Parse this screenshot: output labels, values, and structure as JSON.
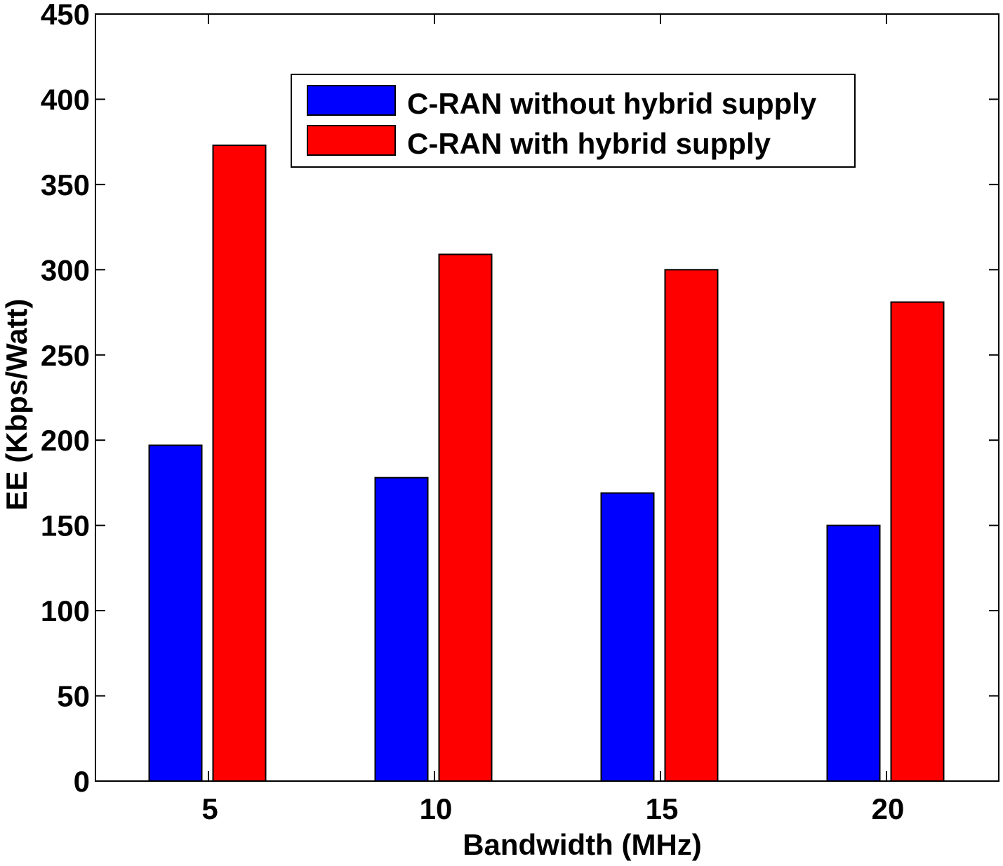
{
  "chart_data": {
    "type": "bar",
    "title": "",
    "xlabel": "Bandwidth (MHz)",
    "ylabel": "EE (Kbps/Watt)",
    "categories": [
      "5",
      "10",
      "15",
      "20"
    ],
    "series": [
      {
        "name": "C-RAN without hybrid supply",
        "color": "#0000ff",
        "values": [
          197,
          178,
          169,
          150
        ]
      },
      {
        "name": "C-RAN with hybrid supply",
        "color": "#ff0000",
        "values": [
          373,
          309,
          300,
          281
        ]
      }
    ],
    "ylim": [
      0,
      450
    ],
    "yticks": [
      "0",
      "50",
      "100",
      "150",
      "200",
      "250",
      "300",
      "350",
      "400",
      "450"
    ],
    "grid": false,
    "legend_position": "top-center"
  }
}
